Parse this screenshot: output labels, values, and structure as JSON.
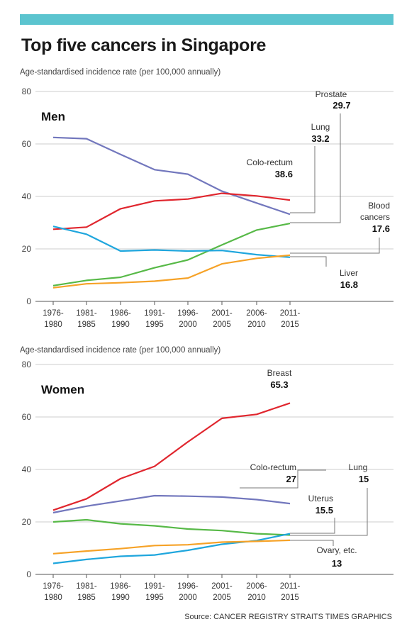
{
  "title": "Top five cancers in Singapore",
  "source": "Source: CANCER REGISTRY  STRAITS TIMES GRAPHICS",
  "colors": {
    "red": "#e0262e",
    "purple": "#7277bd",
    "blue": "#1fa6dd",
    "green": "#57b947",
    "orange": "#f6a227",
    "accent_bar": "#5bc4cf",
    "grid": "#cccccc"
  },
  "chart_data": [
    {
      "type": "line",
      "panel_label": "Men",
      "ylabel": "Age-standardised incidence rate (per 100,000 annually)",
      "ylim": [
        0,
        80
      ],
      "yticks": [
        "0",
        "20",
        "40",
        "60",
        "80"
      ],
      "grid": true,
      "categories": [
        [
          "1976-",
          "1980"
        ],
        [
          "1981-",
          "1985"
        ],
        [
          "1986-",
          "1990"
        ],
        [
          "1991-",
          "1995"
        ],
        [
          "1996-",
          "2000"
        ],
        [
          "2001-",
          "2005"
        ],
        [
          "2006-",
          "2010"
        ],
        [
          "2011-",
          "2015"
        ]
      ],
      "series": [
        {
          "name": "Lung",
          "color": "purple",
          "values": [
            62.5,
            62,
            56,
            50.2,
            48.5,
            42,
            37.5,
            33.2
          ],
          "label_value": "33.2"
        },
        {
          "name": "Colo-rectum",
          "color": "red",
          "values": [
            27.5,
            28.3,
            35.3,
            38.3,
            39,
            41.2,
            40.2,
            38.6
          ],
          "label_value": "38.6"
        },
        {
          "name": "Prostate",
          "color": "green",
          "values": [
            6,
            8,
            9.2,
            12.8,
            15.8,
            21.5,
            27.2,
            29.7
          ],
          "label_value": "29.7"
        },
        {
          "name": "Liver",
          "color": "blue",
          "values": [
            28.6,
            25.6,
            19.2,
            19.6,
            19.2,
            19.4,
            17.8,
            16.8
          ],
          "label_value": "16.8"
        },
        {
          "name": "Blood cancers",
          "name_lines": [
            "Blood",
            "cancers"
          ],
          "color": "orange",
          "values": [
            5.2,
            6.7,
            7.1,
            7.7,
            8.9,
            14.3,
            16.4,
            17.6
          ],
          "label_value": "17.6"
        }
      ]
    },
    {
      "type": "line",
      "panel_label": "Women",
      "ylabel": "Age-standardised incidence rate (per 100,000  annually)",
      "ylim": [
        0,
        80
      ],
      "yticks": [
        "0",
        "20",
        "40",
        "60",
        "80"
      ],
      "grid": true,
      "categories": [
        [
          "1976-",
          "1980"
        ],
        [
          "1981-",
          "1985"
        ],
        [
          "1986-",
          "1990"
        ],
        [
          "1991-",
          "1995"
        ],
        [
          "1996-",
          "2000"
        ],
        [
          "2001-",
          "2005"
        ],
        [
          "2006-",
          "2010"
        ],
        [
          "2011-",
          "2015"
        ]
      ],
      "series": [
        {
          "name": "Breast",
          "color": "red",
          "values": [
            24.5,
            28.8,
            36.5,
            41.2,
            50.5,
            59.5,
            61,
            65.3
          ],
          "label_value": "65.3"
        },
        {
          "name": "Colo-rectum",
          "color": "purple",
          "values": [
            23.5,
            26,
            28,
            30,
            29.8,
            29.5,
            28.5,
            27
          ],
          "label_value": "27"
        },
        {
          "name": "Lung",
          "color": "green",
          "values": [
            20,
            20.8,
            19.3,
            18.5,
            17.3,
            16.7,
            15.5,
            15
          ],
          "label_value": "15"
        },
        {
          "name": "Uterus",
          "color": "blue",
          "values": [
            4.2,
            5.7,
            6.9,
            7.4,
            9.2,
            11.5,
            12.9,
            15.5
          ],
          "label_value": "15.5"
        },
        {
          "name": "Ovary, etc.",
          "color": "orange",
          "values": [
            7.9,
            8.9,
            9.8,
            11,
            11.3,
            12.3,
            12.6,
            13
          ],
          "label_value": "13"
        }
      ]
    }
  ]
}
